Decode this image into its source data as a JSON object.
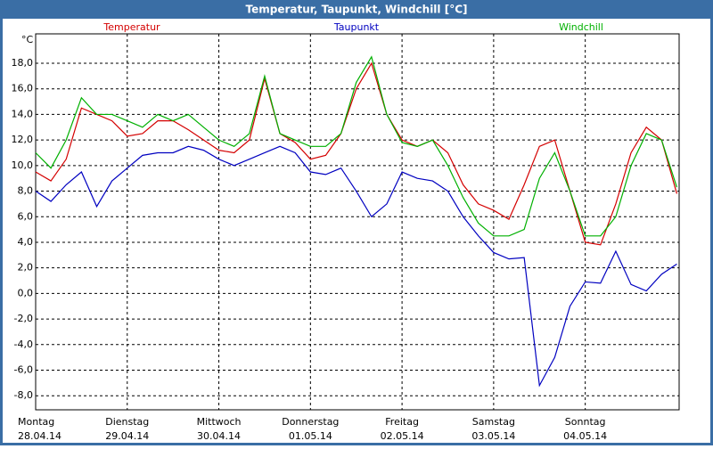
{
  "chart_data": {
    "type": "line",
    "title": "Temperatur, Taupunkt, Windchill [°C]",
    "y_unit": "°C",
    "x": [
      0,
      4,
      8,
      12,
      16,
      20,
      24,
      28,
      32,
      36,
      40,
      44,
      48,
      52,
      56,
      60,
      64,
      68,
      72,
      76,
      80,
      84,
      88,
      92,
      96,
      100,
      104,
      108,
      112,
      116,
      120,
      124,
      128,
      132,
      136,
      140,
      144,
      148,
      152,
      156,
      160,
      164,
      168
    ],
    "series": [
      {
        "name": "Temperatur",
        "color": "#d40000",
        "values": [
          9.5,
          8.8,
          10.5,
          14.5,
          14,
          13.5,
          12.3,
          12.5,
          13.5,
          13.5,
          12.8,
          12,
          11.2,
          11,
          12,
          16.8,
          12.5,
          11.8,
          10.5,
          10.8,
          12.5,
          16,
          18,
          14,
          12,
          11.5,
          12,
          11,
          8.5,
          7,
          6.5,
          5.8,
          8.5,
          11.5,
          12,
          8,
          4,
          3.8,
          7,
          11,
          13,
          12,
          7.8
        ]
      },
      {
        "name": "Taupunkt",
        "color": "#0000c0",
        "values": [
          8,
          7.2,
          8.5,
          9.5,
          6.8,
          8.8,
          9.8,
          10.8,
          11,
          11,
          11.5,
          11.2,
          10.5,
          10,
          10.5,
          11,
          11.5,
          11,
          9.5,
          9.3,
          9.8,
          8,
          6,
          7,
          9.5,
          9,
          8.8,
          8,
          6,
          4.5,
          3.2,
          2.7,
          2.8,
          -7.2,
          -5,
          -1,
          0.9,
          0.8,
          3.3,
          0.7,
          0.2,
          1.5,
          2.3
        ]
      },
      {
        "name": "Windchill",
        "color": "#00b000",
        "values": [
          11,
          9.8,
          12,
          15.3,
          14,
          14,
          13.5,
          13,
          14,
          13.5,
          14,
          13,
          12,
          11.5,
          12.5,
          17,
          12.5,
          12,
          11.5,
          11.5,
          12.5,
          16.5,
          18.5,
          14,
          11.8,
          11.5,
          12,
          10,
          7.5,
          5.5,
          4.5,
          4.5,
          5,
          9,
          11,
          8,
          4.5,
          4.5,
          6,
          10,
          12.5,
          12,
          8.3
        ]
      }
    ],
    "xlim": [
      0,
      168.6
    ],
    "xticks": [
      {
        "value": 0,
        "label": "Montag"
      },
      {
        "value": 24,
        "label": "Dienstag"
      },
      {
        "value": 48,
        "label": "Mittwoch"
      },
      {
        "value": 72,
        "label": "Donnerstag"
      },
      {
        "value": 96,
        "label": "Freitag"
      },
      {
        "value": 120,
        "label": "Samstag"
      },
      {
        "value": 144,
        "label": "Sonntag"
      }
    ],
    "xtick_dates": [
      "28.04.14",
      "29.04.14",
      "30.04.14",
      "01.05.14",
      "02.05.14",
      "03.05.14",
      "04.05.14"
    ],
    "ylim": [
      -9.1,
      20.3
    ],
    "yticks": [
      {
        "value": -8,
        "label": "-8,0"
      },
      {
        "value": -6,
        "label": "-6,0"
      },
      {
        "value": -4,
        "label": "-4,0"
      },
      {
        "value": -2,
        "label": "-2,0"
      },
      {
        "value": 0,
        "label": "0,0"
      },
      {
        "value": 2,
        "label": "2,0"
      },
      {
        "value": 4,
        "label": "4,0"
      },
      {
        "value": 6,
        "label": "6,0"
      },
      {
        "value": 8,
        "label": "8,0"
      },
      {
        "value": 10,
        "label": "10,0"
      },
      {
        "value": 12,
        "label": "12,0"
      },
      {
        "value": 14,
        "label": "14,0"
      },
      {
        "value": 16,
        "label": "16,0"
      },
      {
        "value": 18,
        "label": "18,0"
      }
    ],
    "grid": true
  }
}
